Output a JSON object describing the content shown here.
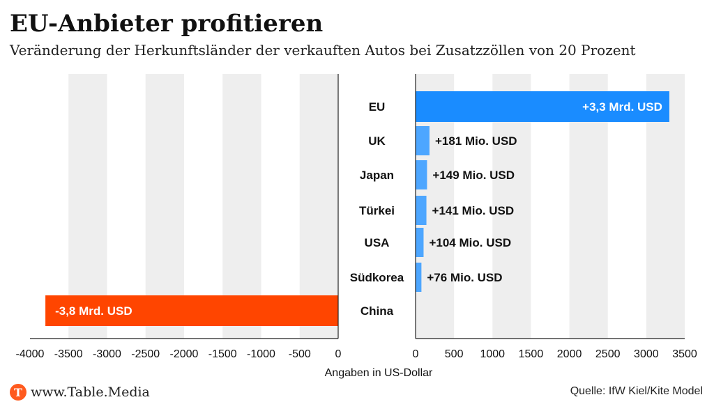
{
  "header": {
    "title": "EU-Anbieter profitieren",
    "subtitle": "Veränderung der Herkunftsländer der verkauften Autos bei Zusatzzöllen von 20 Prozent"
  },
  "footer": {
    "brand": "www.Table.Media",
    "brand_icon": "table-media-logo-icon",
    "source": "Quelle: IfW Kiel/Kite Model"
  },
  "colors": {
    "positive_large": "#1a8cff",
    "positive_small": "#4da6ff",
    "negative": "#ff4500",
    "grid_band": "#eeeeee",
    "brand": "#ff5a1e"
  },
  "chart_data": {
    "type": "bar",
    "orientation": "horizontal",
    "categories": [
      "EU",
      "UK",
      "Japan",
      "Türkei",
      "USA",
      "Südkorea",
      "China"
    ],
    "values": [
      3300,
      181,
      149,
      141,
      104,
      76,
      -3800
    ],
    "value_labels": [
      "+3,3 Mrd. USD",
      "+181 Mio. USD",
      "+149 Mio. USD",
      "+141 Mio. USD",
      "+104 Mio. USD",
      "+76 Mio. USD",
      "-3,8 Mrd. USD"
    ],
    "units": "Mio. USD",
    "xlabel": "Angaben in US-Dollar",
    "negative_axis": {
      "xlim": [
        -4000,
        0
      ],
      "ticks": [
        -4000,
        -3500,
        -3000,
        -2500,
        -2000,
        -1500,
        -1000,
        -500,
        0
      ],
      "tick_labels": [
        "-4000",
        "-3500",
        "-3000",
        "-2500",
        "-2000",
        "-1500",
        "-1000",
        "-500",
        "0"
      ]
    },
    "positive_axis": {
      "xlim": [
        0,
        3500
      ],
      "ticks": [
        0,
        500,
        1000,
        1500,
        2000,
        2500,
        3000,
        3500
      ],
      "tick_labels": [
        "0",
        "500",
        "1000",
        "1500",
        "2000",
        "2500",
        "3000",
        "3500"
      ]
    },
    "grid": "alternating-bands",
    "legend": "none"
  }
}
